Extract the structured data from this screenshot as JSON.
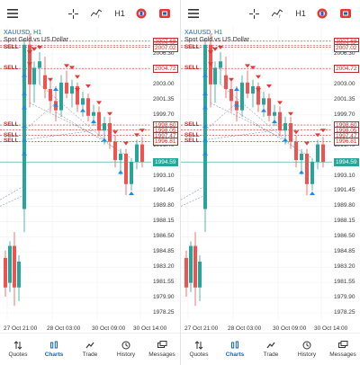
{
  "toolbar": {
    "menu_icon": "hamburger-icon",
    "crosshair_icon": "crosshair-icon",
    "indicator_icon": "indicator-icon",
    "timeframe": "H1",
    "objects_icon": "objects-icon",
    "trade_icon": "new-order-icon"
  },
  "symbol": {
    "ticker": "XAUUSD",
    "timeframe": "H1",
    "name": "Spot Gold vs US Dollar"
  },
  "price_axis": [
    "2006.30",
    "2004.72",
    "2003.00",
    "2001.35",
    "1999.70",
    "1998.05",
    "1996.40",
    "1993.10",
    "1991.45",
    "1989.80",
    "1988.15",
    "1986.50",
    "1984.85",
    "1983.20",
    "1981.55",
    "1979.90",
    "1978.25"
  ],
  "price_tags": {
    "top": [
      "2007.68",
      "2007.25",
      "2007.02"
    ],
    "mid": "2004.72",
    "low": [
      "1998.60",
      "1998.05",
      "1997.47",
      "1996.81"
    ],
    "current": "1994.59"
  },
  "sell_label": "SELL",
  "time_axis": [
    "27 Oct 21:00",
    "28 Oct 03:00",
    "30 Oct 09:00",
    "30 Oct 14:00"
  ],
  "nav": [
    {
      "label": "Quotes",
      "icon": "quotes-icon"
    },
    {
      "label": "Charts",
      "icon": "charts-icon",
      "active": true
    },
    {
      "label": "Trade",
      "icon": "trade-icon"
    },
    {
      "label": "History",
      "icon": "history-icon"
    },
    {
      "label": "Messages",
      "icon": "messages-icon"
    }
  ],
  "colors": {
    "bull": "#26a69a",
    "bear": "#ef5350",
    "buy_marker": "#1e88e5",
    "sell_marker": "#e53935",
    "accent": "#1565c0"
  }
}
